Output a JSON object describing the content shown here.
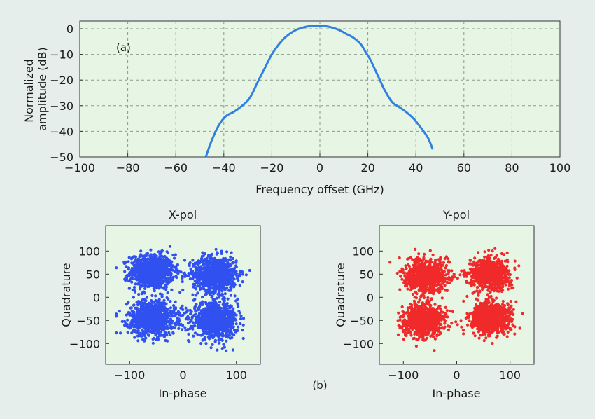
{
  "panel_labels": {
    "a": "(a)",
    "b": "(b)"
  },
  "colors": {
    "page_background": "#e6eeec",
    "plot_background": "#e6f5e4",
    "grid": "#8a9a8a",
    "spectrum_line": "#2f80e0",
    "xpol_points": "#3050f0",
    "ypol_points": "#f02a2a"
  },
  "chart_data": [
    {
      "id": "spectrum",
      "type": "line",
      "title": "",
      "panel_label": "(a)",
      "xlabel": "Frequency offset (GHz)",
      "ylabel": [
        "Normalized",
        "amplitude (dB)"
      ],
      "xlim": [
        -100,
        100
      ],
      "ylim": [
        -50,
        3
      ],
      "xticks": [
        -100,
        -80,
        -60,
        -40,
        -20,
        0,
        20,
        40,
        60,
        80,
        100
      ],
      "yticks": [
        0,
        -10,
        -20,
        -30,
        -40,
        -50
      ],
      "grid": "dashed",
      "series": [
        {
          "color": "#2f80e0",
          "x": [
            -47.5,
            -45,
            -42,
            -39,
            -36,
            -33,
            -30,
            -28,
            -26,
            -23,
            -20,
            -17,
            -14,
            -10,
            -7,
            -4,
            -1,
            2,
            5,
            8,
            11,
            14,
            17,
            19,
            21,
            23,
            25,
            27,
            30,
            33,
            36,
            39,
            42,
            45,
            47
          ],
          "y": [
            -50,
            -43.5,
            -37.5,
            -34,
            -32.5,
            -30.5,
            -28,
            -25,
            -21,
            -15.5,
            -10,
            -6,
            -3,
            -0.5,
            0.5,
            1,
            1,
            1,
            0.5,
            -0.5,
            -2,
            -3.5,
            -6,
            -9,
            -12,
            -16,
            -20,
            -24,
            -28.5,
            -30.5,
            -32.5,
            -35,
            -38.5,
            -42.5,
            -47
          ]
        }
      ]
    },
    {
      "id": "xpol",
      "type": "scatter",
      "title": "X-pol",
      "xlabel": "In-phase",
      "ylabel": "Quadrature",
      "xlim": [
        -145,
        145
      ],
      "ylim": [
        -145,
        155
      ],
      "xticks": [
        -100,
        0,
        100
      ],
      "yticks": [
        100,
        50,
        0,
        -50,
        -100
      ],
      "color": "#3050f0",
      "clusters": [
        {
          "cx": -58,
          "cy": 55,
          "sx": 24,
          "sy": 22,
          "n": 900
        },
        {
          "cx": 60,
          "cy": 50,
          "sx": 24,
          "sy": 22,
          "n": 900
        },
        {
          "cx": -58,
          "cy": -45,
          "sx": 26,
          "sy": 22,
          "n": 900
        },
        {
          "cx": 60,
          "cy": -50,
          "sx": 24,
          "sy": 22,
          "n": 900
        }
      ],
      "data_extent": {
        "x": [
          -125,
          125
        ],
        "y": [
          -120,
          110
        ]
      }
    },
    {
      "id": "ypol",
      "type": "scatter",
      "title": "Y-pol",
      "xlabel": "In-phase",
      "ylabel": "Quadrature",
      "xlim": [
        -145,
        145
      ],
      "ylim": [
        -145,
        155
      ],
      "xticks": [
        -100,
        0,
        100
      ],
      "yticks": [
        100,
        50,
        0,
        -50,
        -100
      ],
      "color": "#f02a2a",
      "clusters": [
        {
          "cx": -58,
          "cy": 45,
          "sx": 22,
          "sy": 20,
          "n": 900
        },
        {
          "cx": 62,
          "cy": 50,
          "sx": 22,
          "sy": 20,
          "n": 900
        },
        {
          "cx": -62,
          "cy": -50,
          "sx": 22,
          "sy": 20,
          "n": 900
        },
        {
          "cx": 62,
          "cy": -45,
          "sx": 22,
          "sy": 20,
          "n": 900
        }
      ],
      "data_extent": {
        "x": [
          -125,
          125
        ],
        "y": [
          -115,
          125
        ]
      }
    }
  ]
}
